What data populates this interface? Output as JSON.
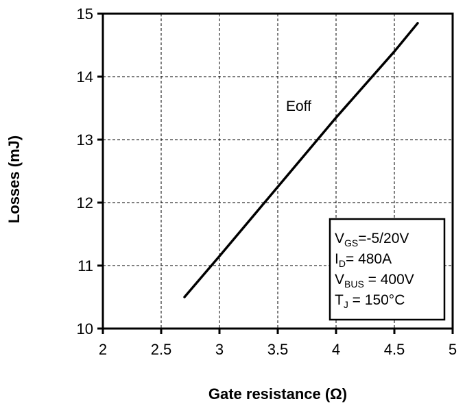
{
  "chart_data": {
    "type": "line",
    "title": "",
    "xlabel": "Gate resistance  (Ω)",
    "ylabel": "Losses  (mJ)",
    "xlim": [
      2,
      5
    ],
    "ylim": [
      10,
      15
    ],
    "xticks": [
      "2",
      "2.5",
      "3",
      "3.5",
      "4",
      "4.5",
      "5"
    ],
    "yticks": [
      "10",
      "11",
      "12",
      "13",
      "14",
      "15"
    ],
    "grid": true,
    "series": [
      {
        "name": "Eoff",
        "x": [
          2.7,
          3.0,
          3.5,
          4.0,
          4.5,
          4.7
        ],
        "y": [
          10.5,
          11.15,
          12.25,
          13.35,
          14.4,
          14.85
        ]
      }
    ],
    "series_label": "Eoff",
    "conditions": {
      "vgs": {
        "main": "V",
        "sub": "GS",
        "rest": "=-5/20V"
      },
      "id": {
        "main": "I",
        "sub": "D",
        "rest": "= 480A"
      },
      "vbus": {
        "main": "V",
        "sub": "BUS",
        "rest": " = 400V"
      },
      "tj": {
        "main": "T",
        "sub": "J",
        "rest": " = 150°C"
      }
    }
  }
}
